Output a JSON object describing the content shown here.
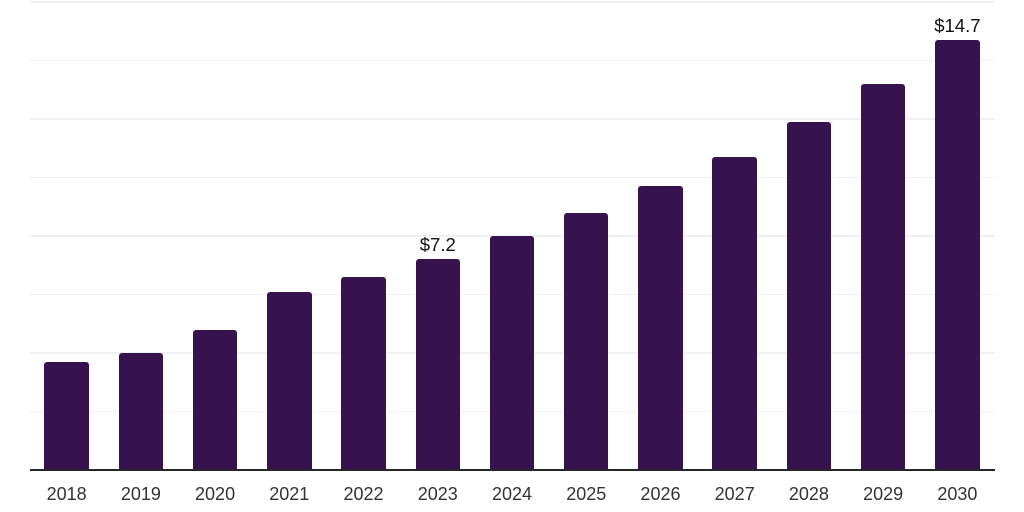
{
  "chart_data": {
    "type": "bar",
    "title": "",
    "xlabel": "",
    "ylabel": "",
    "categories": [
      "2018",
      "2019",
      "2020",
      "2021",
      "2022",
      "2023",
      "2024",
      "2025",
      "2026",
      "2027",
      "2028",
      "2029",
      "2030"
    ],
    "values": [
      3.7,
      4.0,
      4.8,
      6.1,
      6.6,
      7.2,
      8.0,
      8.8,
      9.7,
      10.7,
      11.9,
      13.2,
      14.7
    ],
    "bar_labels": [
      "",
      "",
      "",
      "",
      "",
      "$7.2",
      "",
      "",
      "",
      "",
      "",
      "",
      "$14.7"
    ],
    "ylim": [
      0,
      16
    ],
    "gridline_step": 2,
    "grid": "horizontal",
    "legend_position": "none",
    "y_axis_tick_labels_visible": false,
    "colors": {
      "bar": "#36124E",
      "axis_line": "#262626",
      "gridline": "#F0F0F2",
      "tick_label": "#333333",
      "bar_value_label": "#111111",
      "background": "#FFFFFF"
    }
  }
}
